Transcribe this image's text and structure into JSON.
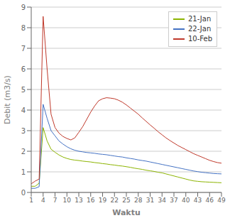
{
  "chart_data": {
    "type": "line",
    "xlabel": "Waktu",
    "ylabel": "Debit (m3/s)",
    "x": [
      1,
      2,
      3,
      4,
      5,
      6,
      7,
      8,
      9,
      10,
      11,
      12,
      13,
      14,
      15,
      16,
      17,
      18,
      19,
      20,
      21,
      22,
      23,
      24,
      25,
      26,
      27,
      28,
      29,
      30,
      31,
      32,
      33,
      34,
      35,
      36,
      37,
      38,
      39,
      40,
      41,
      42,
      43,
      44,
      45,
      46,
      47,
      48,
      49
    ],
    "series": [
      {
        "name": "21-Jan",
        "color": "#8CB400",
        "values": [
          0.3,
          0.3,
          0.45,
          3.15,
          2.5,
          2.1,
          1.95,
          1.82,
          1.72,
          1.65,
          1.6,
          1.57,
          1.55,
          1.52,
          1.5,
          1.48,
          1.45,
          1.43,
          1.4,
          1.38,
          1.35,
          1.33,
          1.3,
          1.28,
          1.25,
          1.22,
          1.18,
          1.15,
          1.12,
          1.08,
          1.05,
          1.02,
          0.98,
          0.95,
          0.9,
          0.85,
          0.8,
          0.75,
          0.7,
          0.65,
          0.6,
          0.56,
          0.54,
          0.52,
          0.51,
          0.5,
          0.49,
          0.48,
          0.47
        ]
      },
      {
        "name": "22-Jan",
        "color": "#4472C4",
        "values": [
          0.2,
          0.2,
          0.28,
          4.28,
          3.6,
          3.0,
          2.75,
          2.5,
          2.35,
          2.22,
          2.12,
          2.05,
          2.0,
          1.97,
          1.94,
          1.92,
          1.9,
          1.87,
          1.85,
          1.83,
          1.8,
          1.77,
          1.74,
          1.72,
          1.68,
          1.65,
          1.62,
          1.58,
          1.55,
          1.52,
          1.48,
          1.44,
          1.4,
          1.36,
          1.32,
          1.28,
          1.24,
          1.2,
          1.16,
          1.12,
          1.08,
          1.04,
          1.01,
          0.98,
          0.96,
          0.94,
          0.92,
          0.91,
          0.9
        ]
      },
      {
        "name": "10-Feb",
        "color": "#C0392B",
        "values": [
          0.42,
          0.55,
          0.65,
          8.55,
          6.0,
          3.8,
          3.15,
          2.88,
          2.72,
          2.62,
          2.55,
          2.65,
          2.92,
          3.2,
          3.55,
          3.9,
          4.2,
          4.45,
          4.55,
          4.6,
          4.58,
          4.55,
          4.48,
          4.38,
          4.25,
          4.1,
          3.95,
          3.8,
          3.62,
          3.45,
          3.28,
          3.12,
          2.95,
          2.8,
          2.65,
          2.52,
          2.4,
          2.28,
          2.18,
          2.08,
          1.98,
          1.88,
          1.8,
          1.72,
          1.64,
          1.56,
          1.5,
          1.45,
          1.42
        ]
      }
    ],
    "xlim": [
      1,
      49
    ],
    "ylim": [
      0,
      9
    ],
    "xticks": [
      1,
      4,
      7,
      10,
      13,
      16,
      19,
      22,
      25,
      28,
      31,
      34,
      37,
      40,
      43,
      46,
      49
    ],
    "yticks": [
      0,
      1,
      2,
      3,
      4,
      5,
      6,
      7,
      8,
      9
    ],
    "grid": "y",
    "legend": "upper right"
  }
}
